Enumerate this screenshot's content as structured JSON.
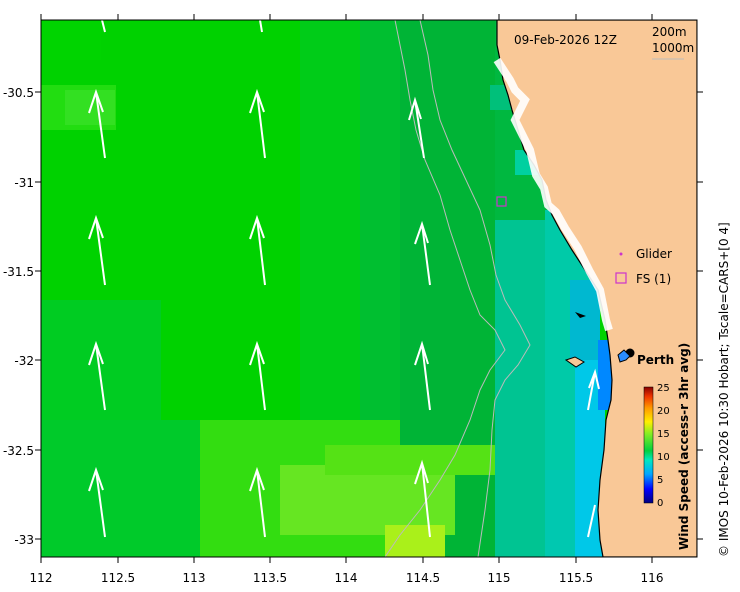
{
  "map": {
    "date_label": "09-Feb-2026 12Z",
    "contour_labels": [
      "200m",
      "1000m"
    ],
    "x_ticks": [
      "112",
      "112.5",
      "113",
      "113.5",
      "114",
      "114.5",
      "115",
      "115.5",
      "116"
    ],
    "y_ticks": [
      "-30.5",
      "-31",
      "-31.5",
      "-32",
      "-32.5",
      "-33"
    ],
    "legend": {
      "glider": "Glider",
      "fs": "FS (1)"
    },
    "city": "Perth",
    "colorbar": {
      "title": "Wind Speed (access-r 3hr avg)",
      "ticks": [
        "25",
        "20",
        "15",
        "10",
        "5",
        "0"
      ]
    },
    "credit": "© IMOS 10-Feb-2026 10:30 Hobart; Tscale=CARS+[0 4]",
    "colors": {
      "land": "#f9c897",
      "water_low": "#00cc33",
      "water_high": "#aaff22",
      "arrow": "#ffffff"
    }
  }
}
